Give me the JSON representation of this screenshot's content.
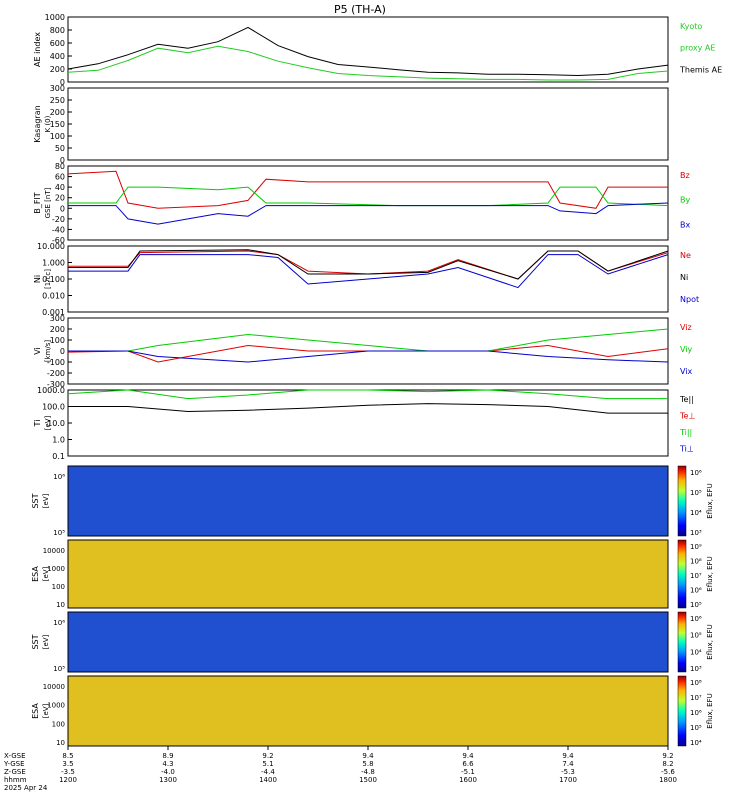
{
  "chart_data": {
    "type": "line",
    "title": "P5 (TH-A)",
    "x_ticks": [
      "1200",
      "1300",
      "1400",
      "1500",
      "1600",
      "1700",
      "1800"
    ],
    "orbit_labels": [
      "X-GSE",
      "Y-GSE",
      "Z-GSE",
      "hhmm",
      "2025 Apr 24"
    ],
    "orbit_values": [
      {
        "x": "8.5",
        "y": "3.5",
        "z": "-3.5"
      },
      {
        "x": "8.9",
        "y": "4.3",
        "z": "-4.0"
      },
      {
        "x": "9.2",
        "y": "5.1",
        "z": "-4.4"
      },
      {
        "x": "9.4",
        "y": "5.8",
        "z": "-4.8"
      },
      {
        "x": "9.4",
        "y": "6.6",
        "z": "-5.1"
      },
      {
        "x": "9.4",
        "y": "7.4",
        "z": "-5.3"
      },
      {
        "x": "9.2",
        "y": "8.2",
        "z": "-5.6"
      }
    ],
    "panels": [
      {
        "ylabel": "AE index",
        "yticks": [
          "1000",
          "800",
          "600",
          "400",
          "200",
          "0"
        ],
        "legend": [
          {
            "text": "Kyoto",
            "color": "#22cc22"
          },
          {
            "text": "proxy AE",
            "color": "#22cc22"
          },
          {
            "text": "Themis AE",
            "color": "#000000"
          }
        ],
        "series": [
          {
            "name": "Themis AE",
            "color": "#000000",
            "x": [
              0,
              0.05,
              0.1,
              0.15,
              0.2,
              0.25,
              0.3,
              0.35,
              0.4,
              0.45,
              0.5,
              0.55,
              0.6,
              0.65,
              0.7,
              0.75,
              0.8,
              0.85,
              0.9,
              0.95,
              1.0
            ],
            "y": [
              200,
              280,
              420,
              580,
              520,
              620,
              840,
              560,
              390,
              270,
              230,
              190,
              150,
              140,
              120,
              120,
              110,
              100,
              120,
              200,
              260
            ]
          },
          {
            "name": "Kyoto proxy AE",
            "color": "#22cc22",
            "x": [
              0,
              0.05,
              0.1,
              0.15,
              0.2,
              0.25,
              0.3,
              0.35,
              0.4,
              0.45,
              0.5,
              0.55,
              0.6,
              0.65,
              0.7,
              0.75,
              0.8,
              0.85,
              0.9,
              0.95,
              1.0
            ],
            "y": [
              150,
              180,
              330,
              520,
              450,
              550,
              470,
              320,
              220,
              130,
              100,
              80,
              60,
              50,
              40,
              40,
              30,
              30,
              40,
              130,
              170
            ]
          }
        ]
      },
      {
        "ylabel": "Kasagran",
        "ylabel_sub": "K (0)",
        "yticks": [
          "300",
          "250",
          "200",
          "150",
          "100",
          "50",
          "0"
        ],
        "series": []
      },
      {
        "ylabel": "B_FIT",
        "ylabel_sub": "GSE [nT]",
        "yticks": [
          "80",
          "60",
          "40",
          "20",
          "0",
          "-20",
          "-40",
          "-60"
        ],
        "legend": [
          {
            "text": "Bz",
            "color": "#dd0000"
          },
          {
            "text": "By",
            "color": "#00cc00"
          },
          {
            "text": "Bx",
            "color": "#0000cc"
          }
        ],
        "series": [
          {
            "name": "Bz",
            "color": "#dd0000",
            "x": [
              0,
              0.08,
              0.1,
              0.15,
              0.25,
              0.3,
              0.33,
              0.4,
              0.55,
              0.7,
              0.8,
              0.82,
              0.88,
              0.9,
              1.0
            ],
            "y": [
              65,
              70,
              10,
              0,
              5,
              15,
              55,
              50,
              50,
              50,
              50,
              10,
              0,
              40,
              40
            ]
          },
          {
            "name": "By",
            "color": "#00cc00",
            "x": [
              0,
              0.08,
              0.1,
              0.15,
              0.25,
              0.3,
              0.33,
              0.4,
              0.55,
              0.7,
              0.8,
              0.82,
              0.88,
              0.9,
              1.0
            ],
            "y": [
              10,
              10,
              40,
              40,
              35,
              40,
              10,
              10,
              5,
              5,
              10,
              40,
              40,
              10,
              5
            ]
          },
          {
            "name": "Bx",
            "color": "#0000cc",
            "x": [
              0,
              0.08,
              0.1,
              0.15,
              0.25,
              0.3,
              0.33,
              0.4,
              0.55,
              0.7,
              0.8,
              0.82,
              0.88,
              0.9,
              1.0
            ],
            "y": [
              5,
              5,
              -20,
              -30,
              -10,
              -15,
              5,
              5,
              5,
              5,
              5,
              -5,
              -10,
              5,
              10
            ]
          }
        ]
      },
      {
        "ylabel": "Ni",
        "ylabel_sub": "[1/cc]",
        "yticks": [
          "10.000",
          "1.000",
          "0.100",
          "0.010",
          "0.001"
        ],
        "legend": [
          {
            "text": "Ne",
            "color": "#dd0000"
          },
          {
            "text": "Ni",
            "color": "#000000"
          },
          {
            "text": "Npot",
            "color": "#0000cc"
          }
        ],
        "series": [
          {
            "name": "Ne",
            "color": "#dd0000",
            "x": [
              0,
              0.1,
              0.12,
              0.3,
              0.35,
              0.4,
              0.5,
              0.6,
              0.65,
              0.75,
              0.8,
              0.85,
              0.9,
              1.0
            ],
            "y": [
              0.6,
              0.6,
              4,
              5,
              3,
              0.3,
              0.2,
              0.3,
              1.5,
              0.1,
              5,
              5,
              0.3,
              4
            ]
          },
          {
            "name": "Ni",
            "color": "#000000",
            "x": [
              0,
              0.1,
              0.12,
              0.3,
              0.35,
              0.4,
              0.5,
              0.6,
              0.65,
              0.75,
              0.8,
              0.85,
              0.9,
              1.0
            ],
            "y": [
              0.5,
              0.5,
              5,
              6,
              3,
              0.2,
              0.2,
              0.25,
              1.3,
              0.1,
              5,
              5,
              0.3,
              5
            ]
          },
          {
            "name": "Npot",
            "color": "#0000cc",
            "x": [
              0,
              0.1,
              0.12,
              0.3,
              0.35,
              0.4,
              0.5,
              0.6,
              0.65,
              0.75,
              0.8,
              0.85,
              0.9,
              1.0
            ],
            "y": [
              0.3,
              0.3,
              3,
              3,
              2,
              0.05,
              0.1,
              0.2,
              0.5,
              0.03,
              3,
              3,
              0.2,
              3
            ]
          }
        ]
      },
      {
        "ylabel": "Vi",
        "ylabel_sub": "[km/s]",
        "yticks": [
          "300",
          "200",
          "100",
          "0",
          "-100",
          "-200",
          "-300"
        ],
        "legend": [
          {
            "text": "Viz",
            "color": "#dd0000"
          },
          {
            "text": "Viy",
            "color": "#00cc00"
          },
          {
            "text": "Vix",
            "color": "#0000cc"
          }
        ],
        "series": [
          {
            "name": "Viz",
            "color": "#dd0000",
            "x": [
              0,
              0.1,
              0.15,
              0.3,
              0.4,
              0.5,
              0.6,
              0.7,
              0.8,
              0.9,
              1.0
            ],
            "y": [
              -10,
              0,
              -100,
              50,
              0,
              0,
              0,
              0,
              50,
              -50,
              20
            ]
          },
          {
            "name": "Viy",
            "color": "#00cc00",
            "x": [
              0,
              0.1,
              0.15,
              0.3,
              0.4,
              0.5,
              0.6,
              0.7,
              0.8,
              0.9,
              1.0
            ],
            "y": [
              0,
              0,
              50,
              150,
              100,
              50,
              0,
              0,
              100,
              150,
              200
            ]
          },
          {
            "name": "Vix",
            "color": "#0000cc",
            "x": [
              0,
              0.1,
              0.15,
              0.3,
              0.4,
              0.5,
              0.6,
              0.7,
              0.8,
              0.9,
              1.0
            ],
            "y": [
              0,
              0,
              -50,
              -100,
              -50,
              0,
              0,
              0,
              -50,
              -80,
              -100
            ]
          }
        ]
      },
      {
        "ylabel": "Ti",
        "ylabel_sub": "[eV]",
        "yticks": [
          "1000.0",
          "100.0",
          "10.0",
          "1.0",
          "0.1"
        ],
        "legend": [
          {
            "text": "Te||",
            "color": "#000000"
          },
          {
            "text": "Te⊥",
            "color": "#dd0000"
          },
          {
            "text": "Ti||",
            "color": "#00cc00"
          },
          {
            "text": "Ti⊥",
            "color": "#0000cc"
          }
        ],
        "series": [
          {
            "name": "Te||",
            "color": "#000000",
            "x": [
              0,
              0.1,
              0.2,
              0.3,
              0.4,
              0.5,
              0.6,
              0.7,
              0.8,
              0.9,
              1.0
            ],
            "y": [
              100,
              100,
              50,
              60,
              80,
              120,
              150,
              130,
              100,
              40,
              40
            ]
          },
          {
            "name": "Ti||",
            "color": "#00cc00",
            "x": [
              0,
              0.1,
              0.2,
              0.3,
              0.4,
              0.5,
              0.6,
              0.7,
              0.8,
              0.9,
              1.0
            ],
            "y": [
              600,
              1000,
              300,
              500,
              1000,
              1500,
              800,
              1200,
              600,
              300,
              300
            ]
          }
        ]
      }
    ],
    "spectrograms": [
      {
        "ylabel": "SST",
        "ylabel_sub": "[eV]",
        "yticks": [
          "10⁶",
          "10⁵"
        ],
        "colorbar_label": "Eflux, EFU",
        "colorbar_ticks": [
          "10⁶",
          "10⁵",
          "10⁴",
          "10³"
        ]
      },
      {
        "ylabel": "ESA",
        "ylabel_sub": "[eV]",
        "yticks": [
          "10000",
          "1000",
          "100",
          "10"
        ],
        "colorbar_label": "Eflux, EFU",
        "colorbar_ticks": [
          "10⁹",
          "10⁸",
          "10⁷",
          "10⁶",
          "10⁵"
        ]
      },
      {
        "ylabel": "SST",
        "ylabel_sub": "[eV]",
        "yticks": [
          "10⁶",
          "10⁵"
        ],
        "colorbar_label": "Eflux, EFU",
        "colorbar_ticks": [
          "10⁶",
          "10⁵",
          "10⁴",
          "10³"
        ]
      },
      {
        "ylabel": "ESA",
        "ylabel_sub": "[eV]",
        "yticks": [
          "10000",
          "1000",
          "100",
          "10"
        ],
        "colorbar_label": "Eflux, EFU",
        "colorbar_ticks": [
          "10⁸",
          "10⁷",
          "10⁶",
          "10⁵",
          "10⁴"
        ]
      }
    ]
  }
}
